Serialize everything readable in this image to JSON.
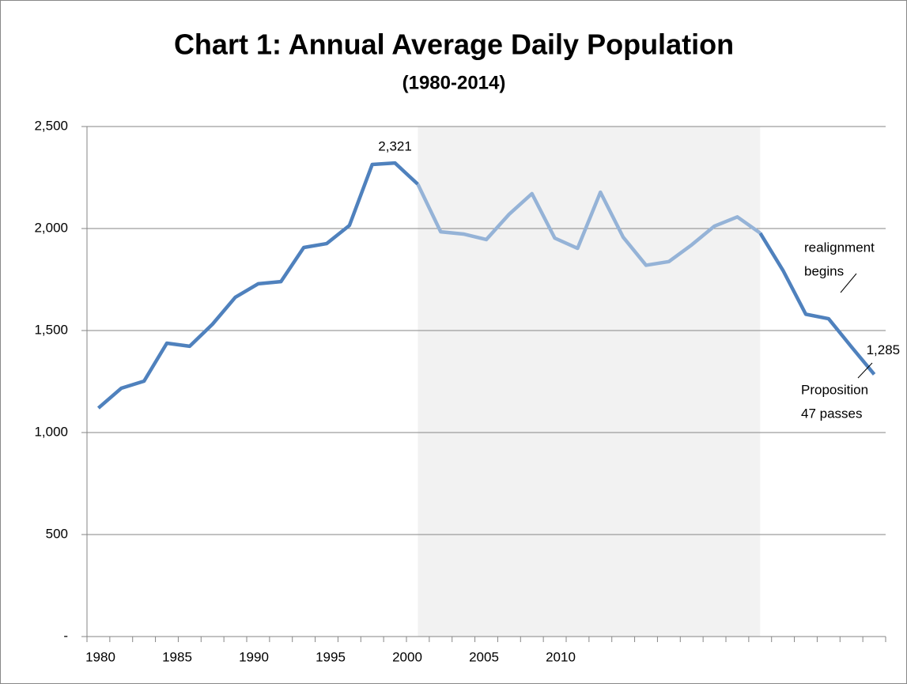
{
  "chart_data": {
    "type": "line",
    "title": "Chart 1: Annual Average Daily Population",
    "subtitle": "(1980-2014)",
    "x": [
      1980,
      1981,
      1982,
      1983,
      1984,
      1985,
      1986,
      1987,
      1988,
      1989,
      1990,
      1991,
      1992,
      1993,
      1994,
      1995,
      1996,
      1997,
      1998,
      1999,
      2000,
      2001,
      2002,
      2003,
      2004,
      2005,
      2006,
      2007,
      2008,
      2009,
      2010,
      2011,
      2012,
      2013,
      2014
    ],
    "xlim": [
      1979.5,
      2014.5
    ],
    "x_tick_labels": [
      "1980",
      "1985",
      "1990",
      "1995",
      "2000",
      "2005",
      "2010"
    ],
    "series": [
      {
        "color": "#4f81bd",
        "values": [
          1120,
          1217,
          1252,
          1438,
          1423,
          1531,
          1663,
          1729,
          1740,
          1907,
          1926,
          2015,
          2314,
          2321,
          2217,
          null,
          null,
          null,
          null,
          null,
          null,
          null,
          null,
          null,
          null,
          null,
          null,
          null,
          null,
          1978,
          1795,
          1580,
          1558,
          1420,
          1285
        ],
        "value_labels": [
          null,
          null,
          null,
          null,
          null,
          null,
          null,
          null,
          null,
          null,
          null,
          null,
          null,
          "2,321",
          null,
          null,
          null,
          null,
          null,
          null,
          null,
          null,
          null,
          null,
          null,
          null,
          null,
          null,
          null,
          null,
          null,
          null,
          null,
          null,
          "1,285"
        ]
      },
      {
        "color": "#95b3d7",
        "values": [
          null,
          null,
          null,
          null,
          null,
          null,
          null,
          null,
          null,
          null,
          null,
          null,
          null,
          null,
          2217,
          1984,
          1973,
          1946,
          2070,
          2171,
          1953,
          1903,
          2178,
          1957,
          1820,
          1838,
          1920,
          2012,
          2057,
          1978,
          null,
          null,
          null,
          null,
          null
        ]
      }
    ],
    "shaded_range": [
      1994,
      2009
    ],
    "shade_color": "#f2f2f2",
    "ylim": [
      0,
      2500
    ],
    "yticks": [
      {
        "value": 0,
        "label": "-"
      },
      500,
      {
        "value": 1000,
        "label": "1,000"
      },
      {
        "value": 1500,
        "label": "1,500"
      },
      {
        "value": 2000,
        "label": "2,000"
      },
      {
        "value": 2500,
        "label": "2,500"
      }
    ],
    "grid": true,
    "annotations": [
      {
        "lines": [
          "realignment",
          "begins"
        ]
      },
      {
        "lines": [
          "Proposition",
          "47 passes"
        ]
      }
    ]
  }
}
